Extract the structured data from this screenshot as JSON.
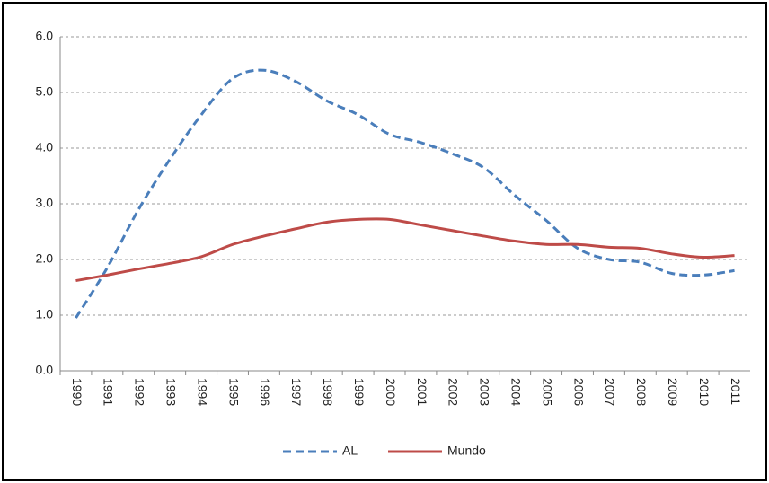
{
  "chart_data": {
    "type": "line",
    "categories": [
      "1990",
      "1991",
      "1992",
      "1993",
      "1994",
      "1995",
      "1996",
      "1997",
      "1998",
      "1999",
      "2000",
      "2001",
      "2002",
      "2003",
      "2004",
      "2005",
      "2006",
      "2007",
      "2008",
      "2009",
      "2010",
      "2011"
    ],
    "series": [
      {
        "name": "AL",
        "color": "#4a7ebb",
        "dashed": true,
        "values": [
          0.95,
          1.85,
          2.9,
          3.8,
          4.6,
          5.25,
          5.4,
          5.2,
          4.85,
          4.6,
          4.25,
          4.1,
          3.9,
          3.65,
          3.15,
          2.7,
          2.2,
          2.0,
          1.95,
          1.75,
          1.72,
          1.8
        ]
      },
      {
        "name": "Mundo",
        "color": "#be4b48",
        "dashed": false,
        "values": [
          1.62,
          1.72,
          1.83,
          1.93,
          2.05,
          2.27,
          2.42,
          2.55,
          2.67,
          2.72,
          2.72,
          2.62,
          2.52,
          2.42,
          2.33,
          2.27,
          2.27,
          2.22,
          2.2,
          2.1,
          2.04,
          2.07
        ]
      }
    ],
    "ylim": [
      0,
      6
    ],
    "yticks": [
      {
        "value": 0,
        "label": "0.0"
      },
      {
        "value": 1,
        "label": "1.0"
      },
      {
        "value": 2,
        "label": "2.0"
      },
      {
        "value": 3,
        "label": "3.0"
      },
      {
        "value": 4,
        "label": "4.0"
      },
      {
        "value": 5,
        "label": "5.0"
      },
      {
        "value": 6,
        "label": "6.0"
      }
    ],
    "grid": true,
    "legend": "bottom"
  }
}
